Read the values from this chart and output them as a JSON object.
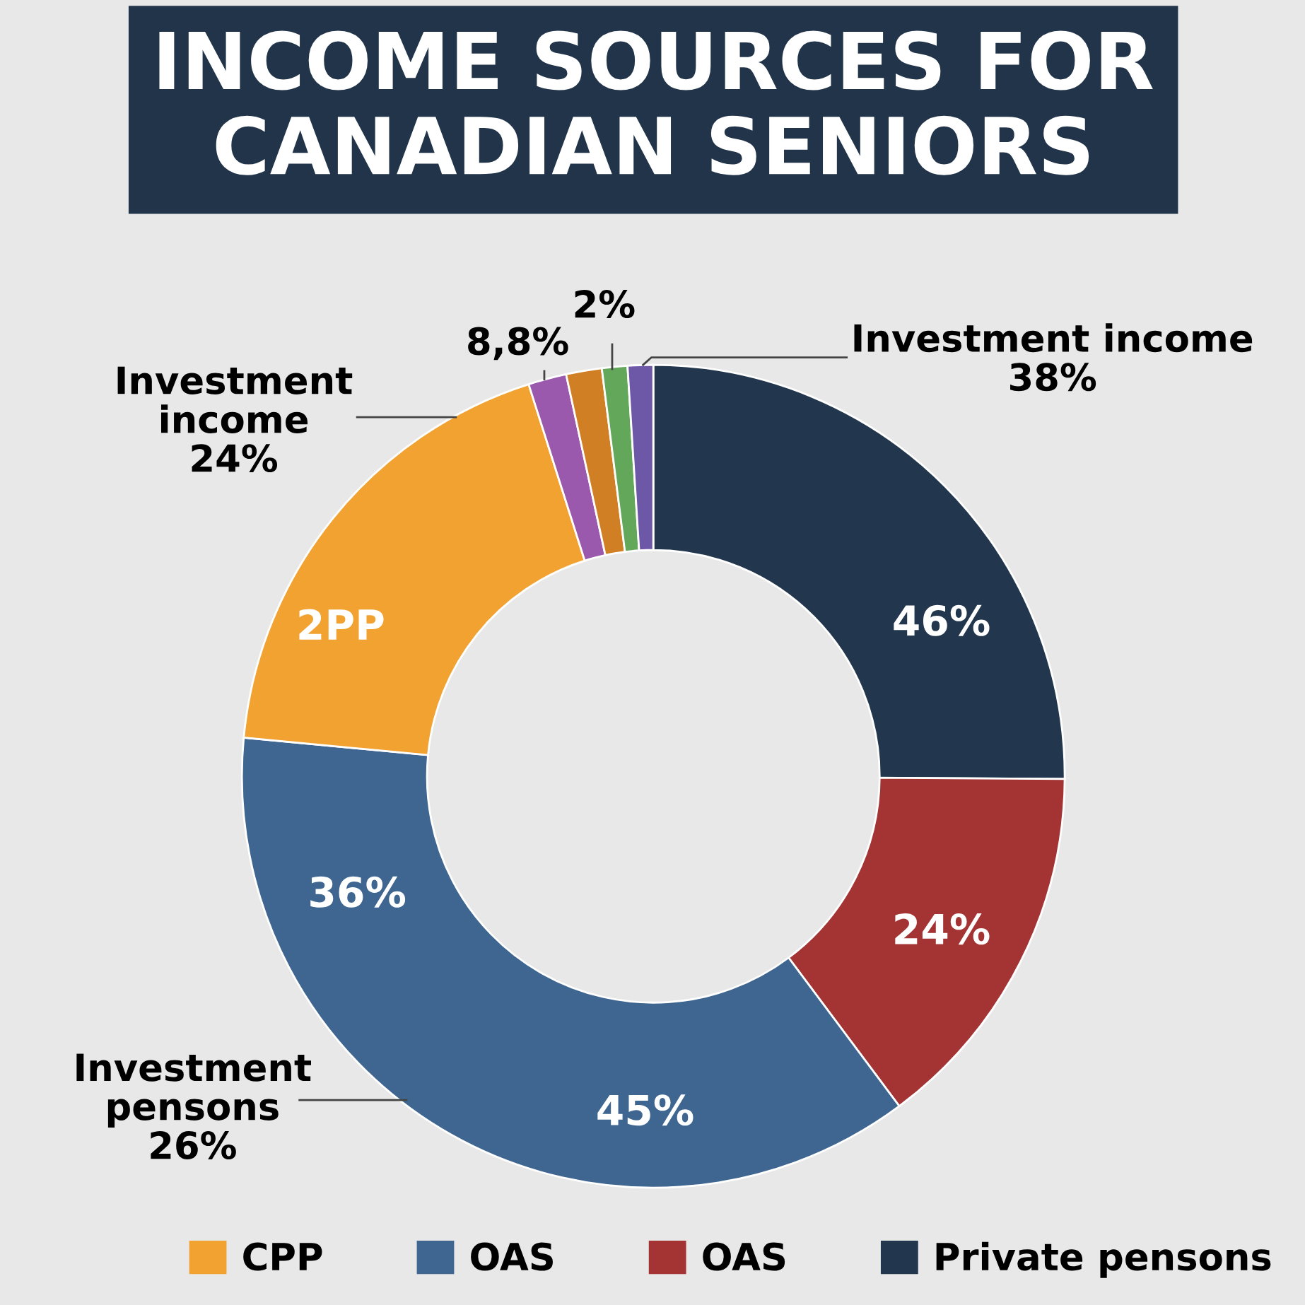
{
  "chart_data": {
    "type": "donut",
    "title": "INCOME SOURCES FOR\nCANADIAN SENIORS",
    "categories": [
      "Private pensons",
      "OAS",
      "OAS",
      "CPP",
      null,
      null,
      null,
      null
    ],
    "values": [
      25.1,
      14.7,
      36.7,
      18.6,
      1.5,
      1.4,
      1.0,
      1.0
    ],
    "colors": [
      "#22374d",
      "#a43434",
      "#3e6690",
      "#f2a231",
      "#9b59ad",
      "#d17f25",
      "#62a75a",
      "#6d58a8"
    ],
    "annotations": [
      "46%",
      "24%",
      "45%",
      "2PP",
      "36%",
      "Investment income\n38%",
      "Investment\nincome\n24%",
      "Investment\npensons\n26%",
      "8,8%",
      "2%"
    ],
    "legend": "bottom"
  }
}
